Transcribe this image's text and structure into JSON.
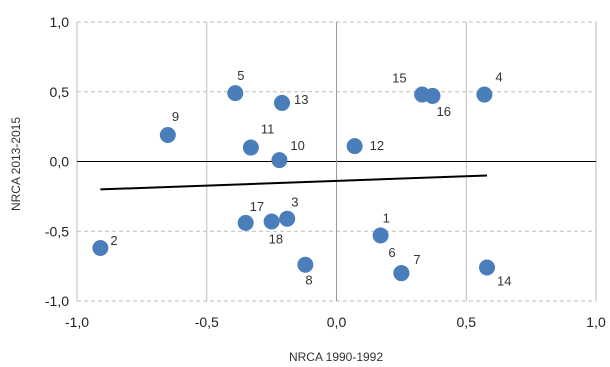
{
  "chart_data": {
    "type": "scatter",
    "xlabel": "NRCA 1990-1992",
    "ylabel": "NRCA 2013-2015",
    "xlim": [
      -1.0,
      1.0
    ],
    "ylim": [
      -1.0,
      1.0
    ],
    "x_ticks": [
      -1.0,
      -0.5,
      0.0,
      0.5,
      1.0
    ],
    "y_ticks": [
      -1.0,
      -0.5,
      0.0,
      0.5,
      1.0
    ],
    "x_tick_labels": [
      "-1,0",
      "-0,5",
      "0,0",
      "0,5",
      "1,0"
    ],
    "y_tick_labels": [
      "-1,0",
      "-0,5",
      "0,0",
      "0,5",
      "1,0"
    ],
    "grid": "dashed horizontal, solid vertical",
    "legend": "none",
    "point_color": "#4a7ebb",
    "trendline_color": "#000000",
    "points": [
      {
        "label": "1",
        "x": 0.17,
        "y": -0.53
      },
      {
        "label": "2",
        "x": -0.91,
        "y": -0.62
      },
      {
        "label": "3",
        "x": -0.19,
        "y": -0.41
      },
      {
        "label": "4",
        "x": 0.57,
        "y": 0.48
      },
      {
        "label": "5",
        "x": -0.39,
        "y": 0.49
      },
      {
        "label": "6",
        "x": 0.25,
        "y": -0.8
      },
      {
        "label": "7",
        "x": 0.25,
        "y": -0.8
      },
      {
        "label": "8",
        "x": -0.12,
        "y": -0.74
      },
      {
        "label": "9",
        "x": -0.65,
        "y": 0.19
      },
      {
        "label": "10",
        "x": -0.22,
        "y": 0.01
      },
      {
        "label": "11",
        "x": -0.33,
        "y": 0.1
      },
      {
        "label": "12",
        "x": 0.07,
        "y": 0.11
      },
      {
        "label": "13",
        "x": -0.21,
        "y": 0.42
      },
      {
        "label": "14",
        "x": 0.58,
        "y": -0.76
      },
      {
        "label": "15",
        "x": 0.33,
        "y": 0.48
      },
      {
        "label": "16",
        "x": 0.37,
        "y": 0.47
      },
      {
        "label": "17",
        "x": -0.35,
        "y": -0.44
      },
      {
        "label": "18",
        "x": -0.25,
        "y": -0.43
      }
    ],
    "trendline": {
      "x": [
        -0.91,
        0.58
      ],
      "y": [
        -0.2,
        -0.1
      ]
    }
  }
}
